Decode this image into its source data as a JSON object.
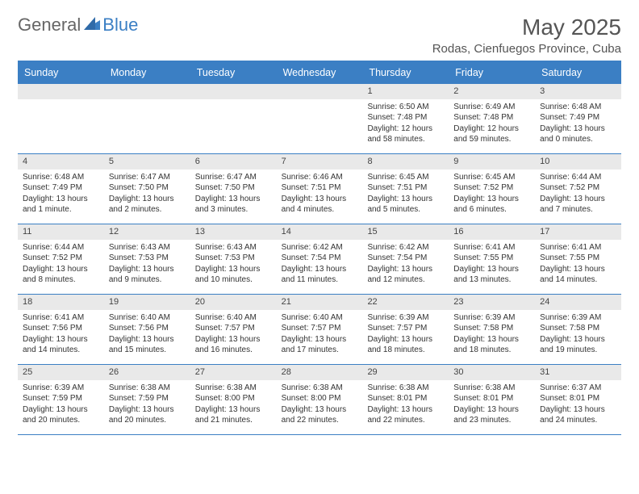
{
  "logo": {
    "general": "General",
    "blue": "Blue"
  },
  "title": "May 2025",
  "location": "Rodas, Cienfuegos Province, Cuba",
  "colors": {
    "accent": "#3b7fc4",
    "header_text": "#ffffff",
    "band": "#e9e9e9",
    "body_text": "#333333",
    "title_text": "#555555",
    "background": "#ffffff"
  },
  "typography": {
    "month_title_size": 28,
    "location_size": 15,
    "weekday_size": 12.5,
    "cell_size": 10
  },
  "weekdays": [
    "Sunday",
    "Monday",
    "Tuesday",
    "Wednesday",
    "Thursday",
    "Friday",
    "Saturday"
  ],
  "weeks": [
    [
      null,
      null,
      null,
      null,
      {
        "n": "1",
        "sunrise": "Sunrise: 6:50 AM",
        "sunset": "Sunset: 7:48 PM",
        "daylight": "Daylight: 12 hours and 58 minutes."
      },
      {
        "n": "2",
        "sunrise": "Sunrise: 6:49 AM",
        "sunset": "Sunset: 7:48 PM",
        "daylight": "Daylight: 12 hours and 59 minutes."
      },
      {
        "n": "3",
        "sunrise": "Sunrise: 6:48 AM",
        "sunset": "Sunset: 7:49 PM",
        "daylight": "Daylight: 13 hours and 0 minutes."
      }
    ],
    [
      {
        "n": "4",
        "sunrise": "Sunrise: 6:48 AM",
        "sunset": "Sunset: 7:49 PM",
        "daylight": "Daylight: 13 hours and 1 minute."
      },
      {
        "n": "5",
        "sunrise": "Sunrise: 6:47 AM",
        "sunset": "Sunset: 7:50 PM",
        "daylight": "Daylight: 13 hours and 2 minutes."
      },
      {
        "n": "6",
        "sunrise": "Sunrise: 6:47 AM",
        "sunset": "Sunset: 7:50 PM",
        "daylight": "Daylight: 13 hours and 3 minutes."
      },
      {
        "n": "7",
        "sunrise": "Sunrise: 6:46 AM",
        "sunset": "Sunset: 7:51 PM",
        "daylight": "Daylight: 13 hours and 4 minutes."
      },
      {
        "n": "8",
        "sunrise": "Sunrise: 6:45 AM",
        "sunset": "Sunset: 7:51 PM",
        "daylight": "Daylight: 13 hours and 5 minutes."
      },
      {
        "n": "9",
        "sunrise": "Sunrise: 6:45 AM",
        "sunset": "Sunset: 7:52 PM",
        "daylight": "Daylight: 13 hours and 6 minutes."
      },
      {
        "n": "10",
        "sunrise": "Sunrise: 6:44 AM",
        "sunset": "Sunset: 7:52 PM",
        "daylight": "Daylight: 13 hours and 7 minutes."
      }
    ],
    [
      {
        "n": "11",
        "sunrise": "Sunrise: 6:44 AM",
        "sunset": "Sunset: 7:52 PM",
        "daylight": "Daylight: 13 hours and 8 minutes."
      },
      {
        "n": "12",
        "sunrise": "Sunrise: 6:43 AM",
        "sunset": "Sunset: 7:53 PM",
        "daylight": "Daylight: 13 hours and 9 minutes."
      },
      {
        "n": "13",
        "sunrise": "Sunrise: 6:43 AM",
        "sunset": "Sunset: 7:53 PM",
        "daylight": "Daylight: 13 hours and 10 minutes."
      },
      {
        "n": "14",
        "sunrise": "Sunrise: 6:42 AM",
        "sunset": "Sunset: 7:54 PM",
        "daylight": "Daylight: 13 hours and 11 minutes."
      },
      {
        "n": "15",
        "sunrise": "Sunrise: 6:42 AM",
        "sunset": "Sunset: 7:54 PM",
        "daylight": "Daylight: 13 hours and 12 minutes."
      },
      {
        "n": "16",
        "sunrise": "Sunrise: 6:41 AM",
        "sunset": "Sunset: 7:55 PM",
        "daylight": "Daylight: 13 hours and 13 minutes."
      },
      {
        "n": "17",
        "sunrise": "Sunrise: 6:41 AM",
        "sunset": "Sunset: 7:55 PM",
        "daylight": "Daylight: 13 hours and 14 minutes."
      }
    ],
    [
      {
        "n": "18",
        "sunrise": "Sunrise: 6:41 AM",
        "sunset": "Sunset: 7:56 PM",
        "daylight": "Daylight: 13 hours and 14 minutes."
      },
      {
        "n": "19",
        "sunrise": "Sunrise: 6:40 AM",
        "sunset": "Sunset: 7:56 PM",
        "daylight": "Daylight: 13 hours and 15 minutes."
      },
      {
        "n": "20",
        "sunrise": "Sunrise: 6:40 AM",
        "sunset": "Sunset: 7:57 PM",
        "daylight": "Daylight: 13 hours and 16 minutes."
      },
      {
        "n": "21",
        "sunrise": "Sunrise: 6:40 AM",
        "sunset": "Sunset: 7:57 PM",
        "daylight": "Daylight: 13 hours and 17 minutes."
      },
      {
        "n": "22",
        "sunrise": "Sunrise: 6:39 AM",
        "sunset": "Sunset: 7:57 PM",
        "daylight": "Daylight: 13 hours and 18 minutes."
      },
      {
        "n": "23",
        "sunrise": "Sunrise: 6:39 AM",
        "sunset": "Sunset: 7:58 PM",
        "daylight": "Daylight: 13 hours and 18 minutes."
      },
      {
        "n": "24",
        "sunrise": "Sunrise: 6:39 AM",
        "sunset": "Sunset: 7:58 PM",
        "daylight": "Daylight: 13 hours and 19 minutes."
      }
    ],
    [
      {
        "n": "25",
        "sunrise": "Sunrise: 6:39 AM",
        "sunset": "Sunset: 7:59 PM",
        "daylight": "Daylight: 13 hours and 20 minutes."
      },
      {
        "n": "26",
        "sunrise": "Sunrise: 6:38 AM",
        "sunset": "Sunset: 7:59 PM",
        "daylight": "Daylight: 13 hours and 20 minutes."
      },
      {
        "n": "27",
        "sunrise": "Sunrise: 6:38 AM",
        "sunset": "Sunset: 8:00 PM",
        "daylight": "Daylight: 13 hours and 21 minutes."
      },
      {
        "n": "28",
        "sunrise": "Sunrise: 6:38 AM",
        "sunset": "Sunset: 8:00 PM",
        "daylight": "Daylight: 13 hours and 22 minutes."
      },
      {
        "n": "29",
        "sunrise": "Sunrise: 6:38 AM",
        "sunset": "Sunset: 8:01 PM",
        "daylight": "Daylight: 13 hours and 22 minutes."
      },
      {
        "n": "30",
        "sunrise": "Sunrise: 6:38 AM",
        "sunset": "Sunset: 8:01 PM",
        "daylight": "Daylight: 13 hours and 23 minutes."
      },
      {
        "n": "31",
        "sunrise": "Sunrise: 6:37 AM",
        "sunset": "Sunset: 8:01 PM",
        "daylight": "Daylight: 13 hours and 24 minutes."
      }
    ]
  ]
}
